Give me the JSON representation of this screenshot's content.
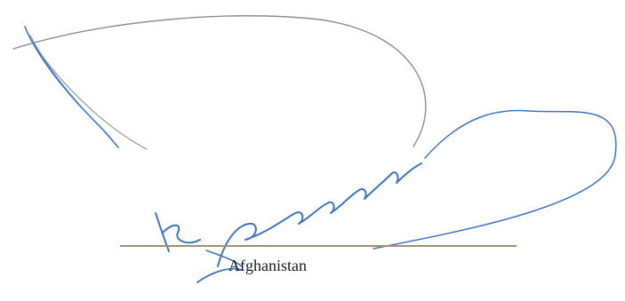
{
  "signature_block": {
    "country": "Afghanistan"
  },
  "colors": {
    "ink_blue": "#3f74c2",
    "ink_gray": "#8d8d8d",
    "line": "#a08f74"
  }
}
